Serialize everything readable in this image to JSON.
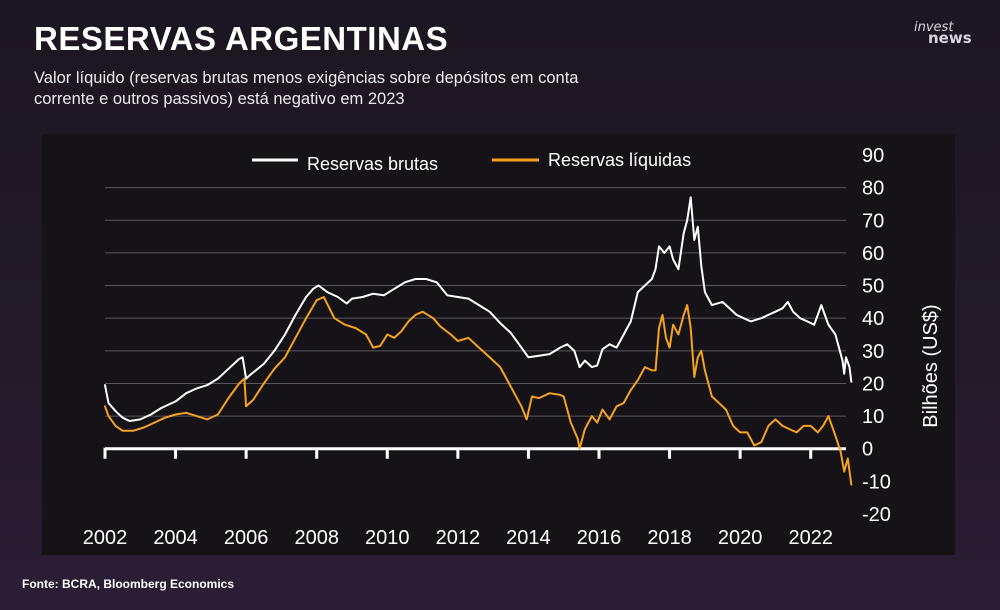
{
  "header": {
    "title": "RESERVAS ARGENTINAS",
    "subtitle": "Valor líquido (reservas brutas menos exigências sobre depósitos em conta corrente e outros passivos) está negativo em 2023",
    "logo_line1": "invest",
    "logo_line2": "news"
  },
  "footer": {
    "source": "Fonte: BCRA, Bloomberg Economics"
  },
  "colors": {
    "background": "#1c1620",
    "panel": "#151317",
    "brutas": "#ffffff",
    "liquidas": "#f6a21e",
    "grid": "#5a5660"
  },
  "chart_data": {
    "type": "line",
    "title": "RESERVAS ARGENTINAS",
    "xlabel": "",
    "ylabel": "Bilhões (US$)",
    "xlim": [
      2002,
      2023
    ],
    "ylim": [
      -20,
      90
    ],
    "yticks": [
      90,
      80,
      70,
      60,
      50,
      40,
      30,
      20,
      10,
      0,
      -10,
      -20
    ],
    "xticks": [
      2002,
      2004,
      2006,
      2008,
      2010,
      2012,
      2014,
      2016,
      2018,
      2020,
      2022
    ],
    "legend_position": "top",
    "grid": true,
    "series": [
      {
        "name": "Reservas brutas",
        "color": "#ffffff",
        "points": [
          [
            2002.0,
            19.5
          ],
          [
            2002.1,
            14
          ],
          [
            2002.3,
            11.5
          ],
          [
            2002.5,
            9.5
          ],
          [
            2002.7,
            8.5
          ],
          [
            2003.0,
            9
          ],
          [
            2003.3,
            10.5
          ],
          [
            2003.6,
            12.5
          ],
          [
            2004.0,
            14.5
          ],
          [
            2004.3,
            17
          ],
          [
            2004.6,
            18.5
          ],
          [
            2004.9,
            19.5
          ],
          [
            2005.2,
            21.5
          ],
          [
            2005.5,
            24.5
          ],
          [
            2005.8,
            27.5
          ],
          [
            2005.9,
            28
          ],
          [
            2006.0,
            21.5
          ],
          [
            2006.1,
            22.5
          ],
          [
            2006.5,
            26
          ],
          [
            2006.8,
            30
          ],
          [
            2007.1,
            35
          ],
          [
            2007.4,
            41
          ],
          [
            2007.7,
            46.5
          ],
          [
            2007.9,
            49
          ],
          [
            2008.05,
            50
          ],
          [
            2008.3,
            48
          ],
          [
            2008.6,
            46.5
          ],
          [
            2008.85,
            44.5
          ],
          [
            2009.0,
            46
          ],
          [
            2009.3,
            46.5
          ],
          [
            2009.6,
            47.5
          ],
          [
            2009.9,
            47
          ],
          [
            2010.2,
            49
          ],
          [
            2010.5,
            51
          ],
          [
            2010.8,
            52
          ],
          [
            2011.1,
            52
          ],
          [
            2011.4,
            51
          ],
          [
            2011.7,
            47
          ],
          [
            2012.0,
            46.5
          ],
          [
            2012.3,
            46
          ],
          [
            2012.6,
            44
          ],
          [
            2012.9,
            42
          ],
          [
            2013.2,
            38.5
          ],
          [
            2013.5,
            35.5
          ],
          [
            2013.8,
            31
          ],
          [
            2014.0,
            28
          ],
          [
            2014.3,
            28.5
          ],
          [
            2014.6,
            29
          ],
          [
            2014.9,
            31
          ],
          [
            2015.1,
            32
          ],
          [
            2015.3,
            30
          ],
          [
            2015.45,
            25
          ],
          [
            2015.6,
            27
          ],
          [
            2015.8,
            25
          ],
          [
            2015.95,
            25.5
          ],
          [
            2016.1,
            30.5
          ],
          [
            2016.3,
            32
          ],
          [
            2016.5,
            31
          ],
          [
            2016.7,
            35
          ],
          [
            2016.9,
            39
          ],
          [
            2017.1,
            48
          ],
          [
            2017.3,
            50
          ],
          [
            2017.5,
            52
          ],
          [
            2017.6,
            55
          ],
          [
            2017.7,
            62
          ],
          [
            2017.85,
            60
          ],
          [
            2018.0,
            62
          ],
          [
            2018.1,
            58
          ],
          [
            2018.25,
            55
          ],
          [
            2018.4,
            66
          ],
          [
            2018.5,
            70
          ],
          [
            2018.6,
            77
          ],
          [
            2018.7,
            64
          ],
          [
            2018.8,
            68
          ],
          [
            2018.9,
            56
          ],
          [
            2019.0,
            48
          ],
          [
            2019.2,
            44
          ],
          [
            2019.5,
            45
          ],
          [
            2019.7,
            43
          ],
          [
            2019.9,
            41
          ],
          [
            2020.1,
            40
          ],
          [
            2020.3,
            39
          ],
          [
            2020.6,
            40
          ],
          [
            2020.8,
            41
          ],
          [
            2021.0,
            42
          ],
          [
            2021.2,
            43
          ],
          [
            2021.35,
            45
          ],
          [
            2021.5,
            42
          ],
          [
            2021.7,
            40
          ],
          [
            2021.9,
            39
          ],
          [
            2022.1,
            38
          ],
          [
            2022.3,
            44
          ],
          [
            2022.5,
            38
          ],
          [
            2022.7,
            35
          ],
          [
            2022.9,
            27
          ],
          [
            2022.95,
            23
          ],
          [
            2023.0,
            28
          ],
          [
            2023.1,
            25
          ],
          [
            2023.15,
            20.5
          ]
        ]
      },
      {
        "name": "Reservas líquidas",
        "color": "#f6a21e",
        "points": [
          [
            2002.0,
            13
          ],
          [
            2002.1,
            10
          ],
          [
            2002.3,
            7
          ],
          [
            2002.5,
            5.5
          ],
          [
            2002.8,
            5.5
          ],
          [
            2003.1,
            6.5
          ],
          [
            2003.4,
            8
          ],
          [
            2003.7,
            9.5
          ],
          [
            2004.0,
            10.5
          ],
          [
            2004.3,
            11
          ],
          [
            2004.6,
            10
          ],
          [
            2004.9,
            9
          ],
          [
            2005.2,
            10.5
          ],
          [
            2005.5,
            15.5
          ],
          [
            2005.8,
            20
          ],
          [
            2005.95,
            21.5
          ],
          [
            2006.0,
            13
          ],
          [
            2006.2,
            15
          ],
          [
            2006.5,
            20
          ],
          [
            2006.8,
            24.5
          ],
          [
            2007.1,
            28
          ],
          [
            2007.4,
            34
          ],
          [
            2007.7,
            40
          ],
          [
            2008.0,
            45.5
          ],
          [
            2008.2,
            46.5
          ],
          [
            2008.5,
            40
          ],
          [
            2008.8,
            38
          ],
          [
            2009.1,
            37
          ],
          [
            2009.4,
            35
          ],
          [
            2009.6,
            31
          ],
          [
            2009.8,
            31.5
          ],
          [
            2010.0,
            35
          ],
          [
            2010.2,
            34
          ],
          [
            2010.4,
            36
          ],
          [
            2010.6,
            39
          ],
          [
            2010.8,
            41
          ],
          [
            2011.0,
            42
          ],
          [
            2011.3,
            40
          ],
          [
            2011.5,
            37.5
          ],
          [
            2011.8,
            35
          ],
          [
            2012.0,
            33
          ],
          [
            2012.3,
            34
          ],
          [
            2012.6,
            31
          ],
          [
            2012.9,
            28
          ],
          [
            2013.2,
            25
          ],
          [
            2013.5,
            19
          ],
          [
            2013.8,
            13
          ],
          [
            2013.95,
            9
          ],
          [
            2014.1,
            16
          ],
          [
            2014.3,
            15.5
          ],
          [
            2014.6,
            17
          ],
          [
            2014.9,
            16.5
          ],
          [
            2015.0,
            16
          ],
          [
            2015.2,
            8
          ],
          [
            2015.4,
            3
          ],
          [
            2015.45,
            0
          ],
          [
            2015.6,
            6
          ],
          [
            2015.8,
            10
          ],
          [
            2015.95,
            8
          ],
          [
            2016.1,
            12
          ],
          [
            2016.3,
            9
          ],
          [
            2016.5,
            13
          ],
          [
            2016.7,
            14
          ],
          [
            2016.9,
            18
          ],
          [
            2017.1,
            21
          ],
          [
            2017.3,
            25
          ],
          [
            2017.5,
            24
          ],
          [
            2017.6,
            24
          ],
          [
            2017.7,
            37
          ],
          [
            2017.8,
            41
          ],
          [
            2017.9,
            34
          ],
          [
            2018.0,
            31
          ],
          [
            2018.1,
            38
          ],
          [
            2018.25,
            35
          ],
          [
            2018.4,
            41
          ],
          [
            2018.5,
            44
          ],
          [
            2018.6,
            37
          ],
          [
            2018.7,
            22
          ],
          [
            2018.8,
            28
          ],
          [
            2018.9,
            30
          ],
          [
            2019.0,
            24
          ],
          [
            2019.2,
            16
          ],
          [
            2019.4,
            14
          ],
          [
            2019.6,
            12
          ],
          [
            2019.8,
            7
          ],
          [
            2020.0,
            5
          ],
          [
            2020.2,
            5
          ],
          [
            2020.4,
            1
          ],
          [
            2020.6,
            2
          ],
          [
            2020.8,
            7
          ],
          [
            2021.0,
            9
          ],
          [
            2021.2,
            7
          ],
          [
            2021.4,
            6
          ],
          [
            2021.6,
            5
          ],
          [
            2021.8,
            7
          ],
          [
            2022.0,
            7
          ],
          [
            2022.2,
            5
          ],
          [
            2022.35,
            7
          ],
          [
            2022.5,
            10
          ],
          [
            2022.7,
            4
          ],
          [
            2022.85,
            -1
          ],
          [
            2022.95,
            -7
          ],
          [
            2023.05,
            -3
          ],
          [
            2023.15,
            -11
          ]
        ]
      }
    ]
  }
}
